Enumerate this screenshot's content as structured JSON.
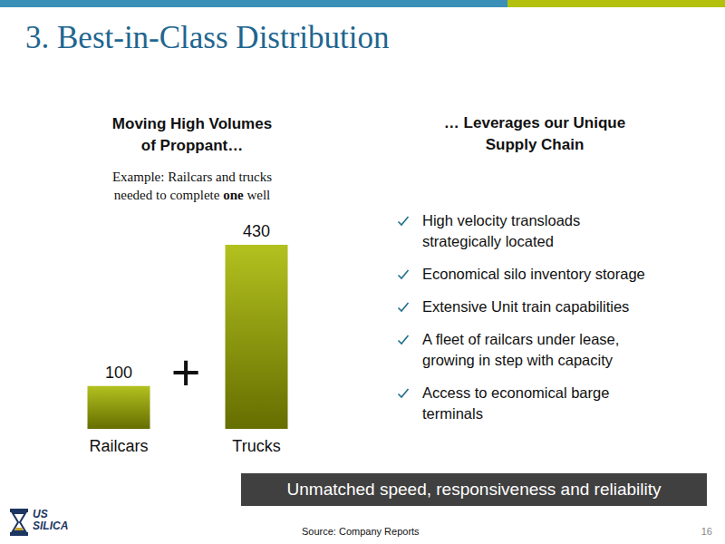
{
  "header": {
    "title": "3. Best-in-Class Distribution"
  },
  "chart_data": {
    "type": "bar",
    "title": "Moving High Volumes\nof Proppant…",
    "subtitle": {
      "text": "Example: Railcars and trucks\nneeded to complete one well",
      "emphasis": "one"
    },
    "categories": [
      "Railcars",
      "Trucks"
    ],
    "values": [
      100,
      430
    ],
    "color": "#a9b800",
    "ylim": [
      0,
      430
    ],
    "grid": false,
    "tick_labels": "x",
    "data_labels": true,
    "annotations": [
      "+"
    ]
  },
  "supply_chain": {
    "title": "… Leverages our Unique\nSupply Chain",
    "bullets": [
      "High velocity transloads\nstrategically located",
      "Economical silo inventory storage",
      "Extensive Unit train capabilities",
      "A fleet of railcars under lease,\ngrowing in step with capacity",
      "Access to economical barge\nterminals"
    ]
  },
  "banner": "Unmatched speed, responsiveness and reliability",
  "footer": {
    "source": "Source: Company Reports",
    "page": "16",
    "logo": [
      "US",
      "SILICA"
    ]
  }
}
